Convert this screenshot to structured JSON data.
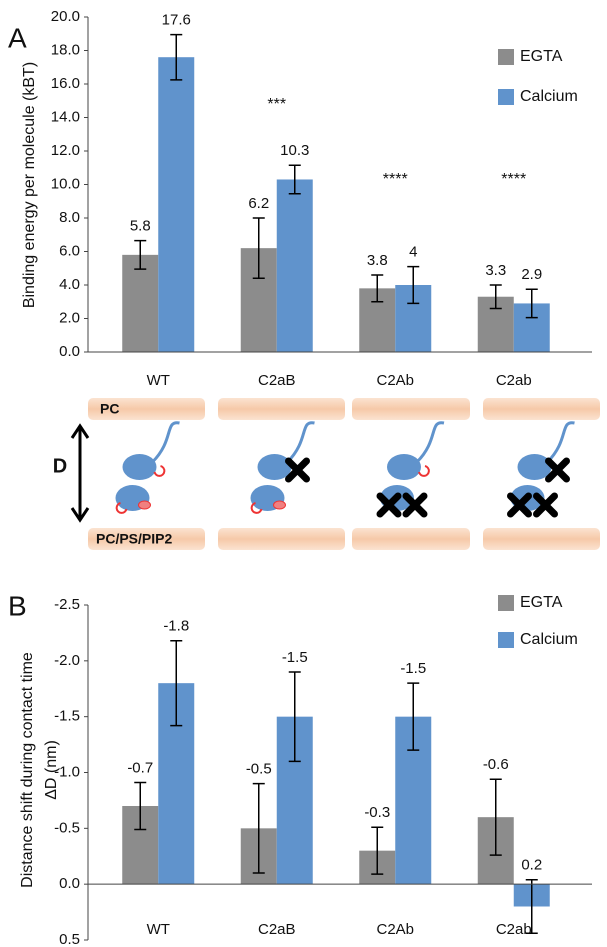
{
  "chart_data": [
    {
      "type": "bar",
      "panel_label": "A",
      "ylabel": [
        "Binding energy per molecule (kBT)"
      ],
      "categories": [
        "WT",
        "C2aB",
        "C2Ab",
        "C2ab"
      ],
      "series": [
        {
          "name": "EGTA",
          "color": "#8c8c8c",
          "values": [
            5.8,
            6.2,
            3.8,
            3.3
          ],
          "errors": [
            0.85,
            1.8,
            0.8,
            0.7
          ]
        },
        {
          "name": "Calcium",
          "color": "#6093cc",
          "values": [
            17.6,
            10.3,
            4.0,
            2.9
          ],
          "errors": [
            1.35,
            0.85,
            1.1,
            0.85
          ]
        }
      ],
      "annotations": [
        {
          "text": "***",
          "x": "C2aB"
        },
        {
          "text": "****",
          "x": "C2Ab"
        },
        {
          "text": "****",
          "x": "C2ab"
        }
      ],
      "ylim": [
        0,
        20
      ],
      "y_reversed": false,
      "yticks": [
        {
          "value": 0,
          "label": "0.0"
        },
        {
          "value": 2,
          "label": "2.0"
        },
        {
          "value": 4,
          "label": "4.0"
        },
        {
          "value": 6,
          "label": "6.0"
        },
        {
          "value": 8,
          "label": "8.0"
        },
        {
          "value": 10,
          "label": "10.0"
        },
        {
          "value": 12,
          "label": "12.0"
        },
        {
          "value": 14,
          "label": "14.0"
        },
        {
          "value": 16,
          "label": "16.0"
        },
        {
          "value": 18,
          "label": "18.0"
        },
        {
          "value": 20,
          "label": "20.0"
        }
      ],
      "grid": false,
      "legend": "upper right"
    },
    {
      "type": "bar",
      "panel_label": "B",
      "ylabel": [
        "Distance shift during contact time",
        "ΔD (nm)"
      ],
      "categories": [
        "WT",
        "C2aB",
        "C2Ab",
        "C2ab"
      ],
      "series": [
        {
          "name": "EGTA",
          "color": "#8c8c8c",
          "values": [
            -0.7,
            -0.5,
            -0.3,
            -0.6
          ],
          "errors": [
            0.21,
            0.4,
            0.21,
            0.34
          ]
        },
        {
          "name": "Calcium",
          "color": "#6093cc",
          "values": [
            -1.8,
            -1.5,
            -1.5,
            0.2
          ],
          "errors": [
            0.38,
            0.4,
            0.3,
            0.24
          ]
        }
      ],
      "annotations": [],
      "ylim": [
        -2.5,
        0.5
      ],
      "y_reversed": true,
      "yticks": [
        -2.5,
        {
          "value": -2,
          "label": "-2.0"
        },
        -1.5,
        {
          "value": -1,
          "label": "-1.0"
        },
        -0.5,
        {
          "value": 0,
          "label": "0.0"
        },
        0.5
      ],
      "grid": false,
      "legend": "upper right"
    }
  ],
  "diagram": {
    "top_membrane": "PC",
    "bottom_membrane": "PC/PS/PIP2",
    "distance": "D"
  }
}
